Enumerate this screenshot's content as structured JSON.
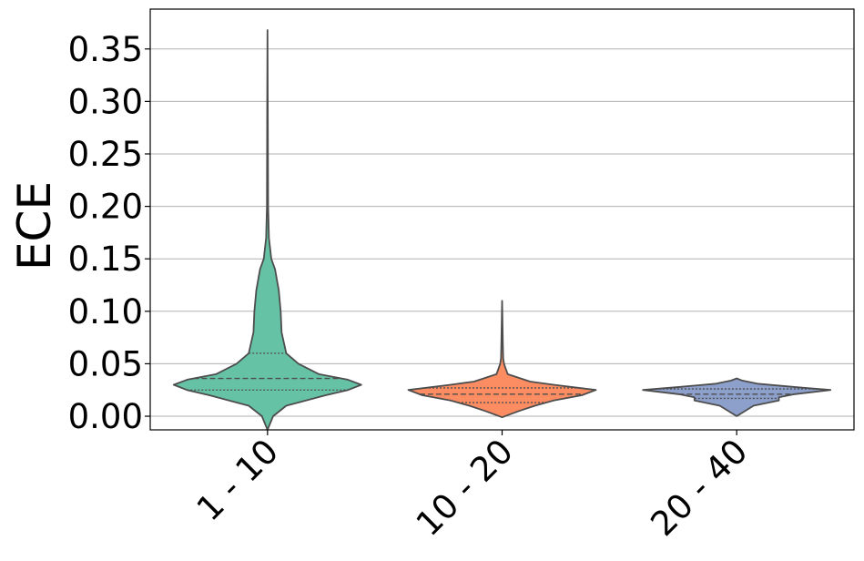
{
  "chart_data": {
    "type": "violin",
    "xlabel": "",
    "ylabel": "ECE",
    "ylim": [
      -0.013,
      0.388
    ],
    "yticks": [
      "0.00",
      "0.05",
      "0.10",
      "0.15",
      "0.20",
      "0.25",
      "0.30",
      "0.35"
    ],
    "grid": "horizontal",
    "categories": [
      "1 - 10",
      "10 - 20",
      "20 - 40"
    ],
    "series": [
      {
        "category": "1 - 10",
        "color": "#66c2a5",
        "min": -0.013,
        "max": 0.368,
        "q1": 0.025,
        "median": 0.036,
        "q3": 0.06,
        "profile": [
          [
            -0.013,
            0.0
          ],
          [
            0.0,
            0.06
          ],
          [
            0.01,
            0.2
          ],
          [
            0.02,
            0.62
          ],
          [
            0.025,
            0.86
          ],
          [
            0.03,
            1.0
          ],
          [
            0.035,
            0.85
          ],
          [
            0.04,
            0.55
          ],
          [
            0.05,
            0.33
          ],
          [
            0.06,
            0.2
          ],
          [
            0.08,
            0.15
          ],
          [
            0.1,
            0.14
          ],
          [
            0.12,
            0.12
          ],
          [
            0.14,
            0.08
          ],
          [
            0.15,
            0.04
          ],
          [
            0.17,
            0.015
          ],
          [
            0.2,
            0.006
          ],
          [
            0.3,
            0.003
          ],
          [
            0.368,
            0.0
          ]
        ]
      },
      {
        "category": "10 - 20",
        "color": "#fc8d62",
        "min": -0.001,
        "max": 0.11,
        "q1": 0.013,
        "median": 0.021,
        "q3": 0.027,
        "profile": [
          [
            -0.001,
            0.0
          ],
          [
            0.005,
            0.18
          ],
          [
            0.01,
            0.35
          ],
          [
            0.015,
            0.55
          ],
          [
            0.02,
            0.85
          ],
          [
            0.025,
            1.0
          ],
          [
            0.03,
            0.55
          ],
          [
            0.033,
            0.3
          ],
          [
            0.04,
            0.06
          ],
          [
            0.045,
            0.04
          ],
          [
            0.05,
            0.02
          ],
          [
            0.055,
            0.012
          ],
          [
            0.07,
            0.008
          ],
          [
            0.11,
            0.0
          ]
        ]
      },
      {
        "category": "20 - 40",
        "color": "#8da0cb",
        "min": 0.0,
        "max": 0.036,
        "q1": 0.017,
        "median": 0.021,
        "q3": 0.026,
        "profile": [
          [
            0.0,
            0.0
          ],
          [
            0.01,
            0.18
          ],
          [
            0.015,
            0.45
          ],
          [
            0.018,
            0.45
          ],
          [
            0.021,
            0.62
          ],
          [
            0.025,
            1.0
          ],
          [
            0.028,
            0.6
          ],
          [
            0.031,
            0.22
          ],
          [
            0.034,
            0.06
          ],
          [
            0.036,
            0.0
          ]
        ]
      }
    ]
  }
}
